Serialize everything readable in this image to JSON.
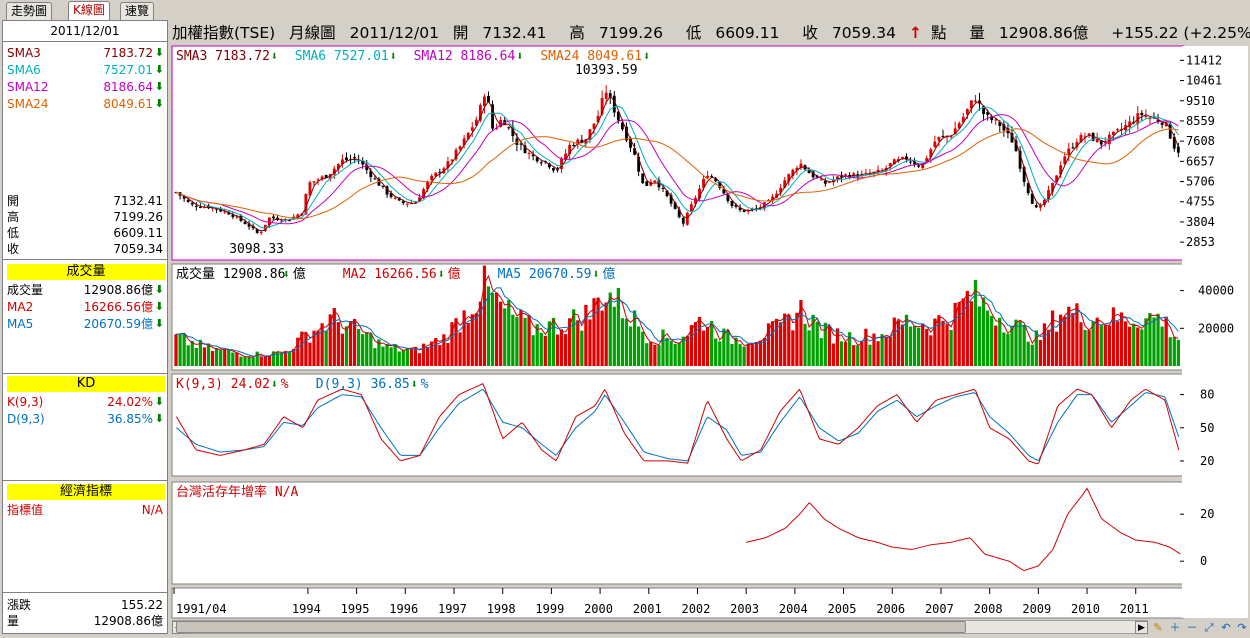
{
  "tabs": [
    "走勢圖",
    "K線圖",
    "速覽"
  ],
  "active_tab": 1,
  "header": {
    "title": "加權指數(TSE)",
    "period": "月線圖",
    "date": "2011/12/01",
    "open_label": "開",
    "open": "7132.41",
    "high_label": "高",
    "high": "7199.26",
    "low_label": "低",
    "low": "6609.11",
    "close_label": "收",
    "close": "7059.34",
    "up_arrow": "↑",
    "unit_pt": "點",
    "vol_label": "量",
    "vol": "12908.86億",
    "change": "+155.22 (+2.25%)"
  },
  "left": {
    "date": "2011/12/01",
    "sma": [
      {
        "k": "SMA3",
        "v": "7183.72",
        "c": "#800000"
      },
      {
        "k": "SMA6",
        "v": "7527.01",
        "c": "#00b0c0"
      },
      {
        "k": "SMA12",
        "v": "8186.64",
        "c": "#c000c0"
      },
      {
        "k": "SMA24",
        "v": "8049.61",
        "c": "#e06000"
      }
    ],
    "ohlc": [
      {
        "k": "開",
        "v": "7132.41"
      },
      {
        "k": "高",
        "v": "7199.26"
      },
      {
        "k": "低",
        "v": "6609.11"
      },
      {
        "k": "收",
        "v": "7059.34"
      }
    ],
    "vol_header": "成交量",
    "vol": [
      {
        "k": "成交量",
        "v": "12908.86億",
        "c": "#000000"
      },
      {
        "k": "MA2",
        "v": "16266.56億",
        "c": "#d00000"
      },
      {
        "k": "MA5",
        "v": "20670.59億",
        "c": "#0070c0"
      }
    ],
    "kd_header": "KD",
    "kd": [
      {
        "k": "K(9,3)",
        "v": "24.02%",
        "c": "#d00000"
      },
      {
        "k": "D(9,3)",
        "v": "36.85%",
        "c": "#0070c0"
      }
    ],
    "econ_header": "經濟指標",
    "econ": {
      "k": "指標值",
      "v": "N/A",
      "c": "#d00000"
    },
    "bottom": [
      {
        "k": "漲跌",
        "v": "155.22"
      },
      {
        "k": "量",
        "v": "12908.86億"
      }
    ],
    "down_arrow": "⬇"
  },
  "chart_data": {
    "type": "candlestick",
    "price_panel": {
      "legend": [
        {
          "name": "SMA3",
          "value": "7183.72",
          "color": "#800000"
        },
        {
          "name": "SMA6",
          "value": "7527.01",
          "color": "#00b0c0"
        },
        {
          "name": "SMA12",
          "value": "8186.64",
          "color": "#c000c0"
        },
        {
          "name": "SMA24",
          "value": "8049.61",
          "color": "#e06000"
        }
      ],
      "y_ticks": [
        2853,
        3804,
        4755,
        5706,
        6657,
        7608,
        8559,
        9510,
        10461,
        11412
      ],
      "ylim": [
        2200,
        11900
      ],
      "annotations": [
        {
          "text": "10393.59",
          "x": 2000.1,
          "y": 10393.59
        },
        {
          "text": "3098.33",
          "x": 1993.0,
          "y": 3098.33
        }
      ],
      "close_path": [
        [
          1991.3,
          5200
        ],
        [
          1991.6,
          4600
        ],
        [
          1992.0,
          4500
        ],
        [
          1992.4,
          4200
        ],
        [
          1992.8,
          3600
        ],
        [
          1993.0,
          3200
        ],
        [
          1993.2,
          4000
        ],
        [
          1993.6,
          3900
        ],
        [
          1993.9,
          4300
        ],
        [
          1994.0,
          5600
        ],
        [
          1994.4,
          6000
        ],
        [
          1994.7,
          6700
        ],
        [
          1995.0,
          6800
        ],
        [
          1995.3,
          6000
        ],
        [
          1995.6,
          5200
        ],
        [
          1995.9,
          4700
        ],
        [
          1996.2,
          4700
        ],
        [
          1996.5,
          5800
        ],
        [
          1996.9,
          6600
        ],
        [
          1997.2,
          7600
        ],
        [
          1997.5,
          8800
        ],
        [
          1997.65,
          10100
        ],
        [
          1997.8,
          8100
        ],
        [
          1998.0,
          8700
        ],
        [
          1998.3,
          7500
        ],
        [
          1998.6,
          6900
        ],
        [
          1998.9,
          6600
        ],
        [
          1999.1,
          6200
        ],
        [
          1999.4,
          7500
        ],
        [
          1999.7,
          7700
        ],
        [
          2000.0,
          9000
        ],
        [
          2000.1,
          10100
        ],
        [
          2000.4,
          8500
        ],
        [
          2000.7,
          7000
        ],
        [
          2000.9,
          5400
        ],
        [
          2001.1,
          5900
        ],
        [
          2001.4,
          4900
        ],
        [
          2001.7,
          3700
        ],
        [
          2001.9,
          4700
        ],
        [
          2002.2,
          6100
        ],
        [
          2002.4,
          5700
        ],
        [
          2002.7,
          4600
        ],
        [
          2002.9,
          4300
        ],
        [
          2003.2,
          4400
        ],
        [
          2003.5,
          4800
        ],
        [
          2003.8,
          5800
        ],
        [
          2004.1,
          6600
        ],
        [
          2004.3,
          6100
        ],
        [
          2004.6,
          5600
        ],
        [
          2005.0,
          6000
        ],
        [
          2005.4,
          6000
        ],
        [
          2005.8,
          6200
        ],
        [
          2006.0,
          6600
        ],
        [
          2006.3,
          6800
        ],
        [
          2006.6,
          6400
        ],
        [
          2006.9,
          7700
        ],
        [
          2007.2,
          7900
        ],
        [
          2007.5,
          8900
        ],
        [
          2007.7,
          9700
        ],
        [
          2007.9,
          8800
        ],
        [
          2008.2,
          8400
        ],
        [
          2008.5,
          7500
        ],
        [
          2008.7,
          5800
        ],
        [
          2008.9,
          4600
        ],
        [
          2009.0,
          4300
        ],
        [
          2009.3,
          5600
        ],
        [
          2009.5,
          6800
        ],
        [
          2009.8,
          7700
        ],
        [
          2010.0,
          7900
        ],
        [
          2010.3,
          7500
        ],
        [
          2010.6,
          8000
        ],
        [
          2010.9,
          8500
        ],
        [
          2011.1,
          8900
        ],
        [
          2011.3,
          8700
        ],
        [
          2011.6,
          8500
        ],
        [
          2011.8,
          7300
        ],
        [
          2011.92,
          7059
        ]
      ]
    },
    "volume_panel": {
      "legend": [
        {
          "name": "成交量",
          "value": "12908.86",
          "unit": "億",
          "color": "#000000"
        },
        {
          "name": "MA2",
          "value": "16266.56",
          "unit": "億",
          "color": "#d00000"
        },
        {
          "name": "MA5",
          "value": "20670.59",
          "unit": "億",
          "color": "#0070c0"
        }
      ],
      "y_ticks": [
        20000,
        40000
      ],
      "ylim": [
        0,
        52000
      ],
      "volume_path": [
        [
          1991.3,
          15000
        ],
        [
          1992.0,
          9000
        ],
        [
          1992.8,
          6000
        ],
        [
          1993.5,
          7000
        ],
        [
          1994.0,
          17000
        ],
        [
          1994.5,
          25000
        ],
        [
          1995.0,
          19000
        ],
        [
          1995.6,
          10000
        ],
        [
          1996.2,
          8000
        ],
        [
          1996.8,
          15000
        ],
        [
          1997.3,
          30000
        ],
        [
          1997.6,
          42000
        ],
        [
          1998.0,
          30000
        ],
        [
          1998.6,
          20000
        ],
        [
          1999.2,
          22000
        ],
        [
          1999.8,
          28000
        ],
        [
          2000.1,
          40000
        ],
        [
          2000.5,
          30000
        ],
        [
          2001.0,
          16000
        ],
        [
          2001.6,
          14000
        ],
        [
          2002.1,
          25000
        ],
        [
          2002.6,
          15000
        ],
        [
          2003.0,
          14000
        ],
        [
          2003.7,
          20000
        ],
        [
          2004.1,
          30000
        ],
        [
          2004.6,
          18000
        ],
        [
          2005.2,
          15000
        ],
        [
          2005.8,
          17000
        ],
        [
          2006.3,
          24000
        ],
        [
          2006.8,
          22000
        ],
        [
          2007.3,
          28000
        ],
        [
          2007.6,
          38000
        ],
        [
          2008.0,
          30000
        ],
        [
          2008.6,
          20000
        ],
        [
          2009.0,
          14000
        ],
        [
          2009.5,
          30000
        ],
        [
          2009.9,
          26000
        ],
        [
          2010.5,
          25000
        ],
        [
          2011.0,
          25000
        ],
        [
          2011.5,
          26000
        ],
        [
          2011.92,
          13000
        ]
      ]
    },
    "kd_panel": {
      "legend": [
        {
          "name": "K(9,3)",
          "value": "24.02",
          "unit": "%",
          "color": "#d00000"
        },
        {
          "name": "D(9,3)",
          "value": "36.85",
          "unit": "%",
          "color": "#0070c0"
        }
      ],
      "y_ticks": [
        20,
        50,
        80
      ],
      "ylim": [
        10,
        95
      ],
      "k": [
        [
          1991.3,
          60
        ],
        [
          1991.7,
          30
        ],
        [
          1992.2,
          25
        ],
        [
          1992.7,
          30
        ],
        [
          1993.1,
          35
        ],
        [
          1993.5,
          60
        ],
        [
          1993.9,
          50
        ],
        [
          1994.2,
          75
        ],
        [
          1994.7,
          85
        ],
        [
          1995.1,
          80
        ],
        [
          1995.5,
          40
        ],
        [
          1995.9,
          20
        ],
        [
          1996.3,
          25
        ],
        [
          1996.7,
          60
        ],
        [
          1997.1,
          80
        ],
        [
          1997.6,
          90
        ],
        [
          1998.0,
          40
        ],
        [
          1998.4,
          55
        ],
        [
          1998.8,
          30
        ],
        [
          1999.1,
          20
        ],
        [
          1999.5,
          60
        ],
        [
          1999.9,
          70
        ],
        [
          2000.1,
          85
        ],
        [
          2000.5,
          45
        ],
        [
          2000.9,
          20
        ],
        [
          2001.4,
          20
        ],
        [
          2001.8,
          18
        ],
        [
          2002.2,
          75
        ],
        [
          2002.6,
          40
        ],
        [
          2002.9,
          20
        ],
        [
          2003.3,
          30
        ],
        [
          2003.7,
          65
        ],
        [
          2004.1,
          85
        ],
        [
          2004.5,
          40
        ],
        [
          2004.9,
          35
        ],
        [
          2005.3,
          50
        ],
        [
          2005.7,
          70
        ],
        [
          2006.1,
          80
        ],
        [
          2006.5,
          55
        ],
        [
          2006.9,
          75
        ],
        [
          2007.3,
          80
        ],
        [
          2007.7,
          85
        ],
        [
          2008.0,
          50
        ],
        [
          2008.4,
          40
        ],
        [
          2008.8,
          20
        ],
        [
          2009.0,
          17
        ],
        [
          2009.4,
          70
        ],
        [
          2009.8,
          85
        ],
        [
          2010.1,
          80
        ],
        [
          2010.5,
          50
        ],
        [
          2010.9,
          75
        ],
        [
          2011.2,
          85
        ],
        [
          2011.6,
          75
        ],
        [
          2011.92,
          24
        ]
      ],
      "d": [
        [
          1991.3,
          50
        ],
        [
          1991.7,
          35
        ],
        [
          1992.2,
          28
        ],
        [
          1992.7,
          30
        ],
        [
          1993.1,
          33
        ],
        [
          1993.5,
          55
        ],
        [
          1993.9,
          52
        ],
        [
          1994.2,
          68
        ],
        [
          1994.7,
          80
        ],
        [
          1995.1,
          78
        ],
        [
          1995.5,
          50
        ],
        [
          1995.9,
          25
        ],
        [
          1996.3,
          25
        ],
        [
          1996.7,
          50
        ],
        [
          1997.1,
          72
        ],
        [
          1997.6,
          85
        ],
        [
          1998.0,
          55
        ],
        [
          1998.4,
          50
        ],
        [
          1998.8,
          35
        ],
        [
          1999.1,
          25
        ],
        [
          1999.5,
          50
        ],
        [
          1999.9,
          65
        ],
        [
          2000.1,
          80
        ],
        [
          2000.5,
          55
        ],
        [
          2000.9,
          28
        ],
        [
          2001.4,
          22
        ],
        [
          2001.8,
          20
        ],
        [
          2002.2,
          60
        ],
        [
          2002.6,
          48
        ],
        [
          2002.9,
          25
        ],
        [
          2003.3,
          28
        ],
        [
          2003.7,
          55
        ],
        [
          2004.1,
          78
        ],
        [
          2004.5,
          50
        ],
        [
          2004.9,
          38
        ],
        [
          2005.3,
          45
        ],
        [
          2005.7,
          65
        ],
        [
          2006.1,
          75
        ],
        [
          2006.5,
          60
        ],
        [
          2006.9,
          70
        ],
        [
          2007.3,
          78
        ],
        [
          2007.7,
          82
        ],
        [
          2008.0,
          60
        ],
        [
          2008.4,
          45
        ],
        [
          2008.8,
          25
        ],
        [
          2009.0,
          20
        ],
        [
          2009.4,
          55
        ],
        [
          2009.8,
          80
        ],
        [
          2010.1,
          80
        ],
        [
          2010.5,
          55
        ],
        [
          2010.9,
          70
        ],
        [
          2011.2,
          82
        ],
        [
          2011.6,
          78
        ],
        [
          2011.92,
          37
        ]
      ]
    },
    "econ_panel": {
      "legend": [
        {
          "name": "台灣活存年增率",
          "value": "N/A",
          "color": "#d00000"
        }
      ],
      "y_ticks": [
        0,
        20
      ],
      "ylim": [
        -8,
        32
      ],
      "series": [
        [
          2003.0,
          8
        ],
        [
          2003.4,
          10
        ],
        [
          2003.8,
          14
        ],
        [
          2004.1,
          20
        ],
        [
          2004.3,
          25
        ],
        [
          2004.6,
          18
        ],
        [
          2004.9,
          14
        ],
        [
          2005.3,
          10
        ],
        [
          2005.7,
          8
        ],
        [
          2006.0,
          6
        ],
        [
          2006.4,
          5
        ],
        [
          2006.8,
          7
        ],
        [
          2007.2,
          8
        ],
        [
          2007.6,
          10
        ],
        [
          2007.9,
          3
        ],
        [
          2008.4,
          0
        ],
        [
          2008.7,
          -4
        ],
        [
          2009.0,
          -2
        ],
        [
          2009.3,
          5
        ],
        [
          2009.6,
          20
        ],
        [
          2009.9,
          28
        ],
        [
          2010.0,
          31
        ],
        [
          2010.3,
          18
        ],
        [
          2010.7,
          12
        ],
        [
          2011.0,
          9
        ],
        [
          2011.4,
          8
        ],
        [
          2011.7,
          6
        ],
        [
          2011.92,
          3
        ]
      ]
    },
    "x_ticks": [
      "1991/04",
      "1994",
      "1995",
      "1996",
      "1997",
      "1998",
      "1999",
      "2000",
      "2001",
      "2002",
      "2003",
      "2004",
      "2005",
      "2006",
      "2007",
      "2008",
      "2009",
      "2010",
      "2011"
    ],
    "xlim": [
      1991.25,
      2011.95
    ]
  }
}
